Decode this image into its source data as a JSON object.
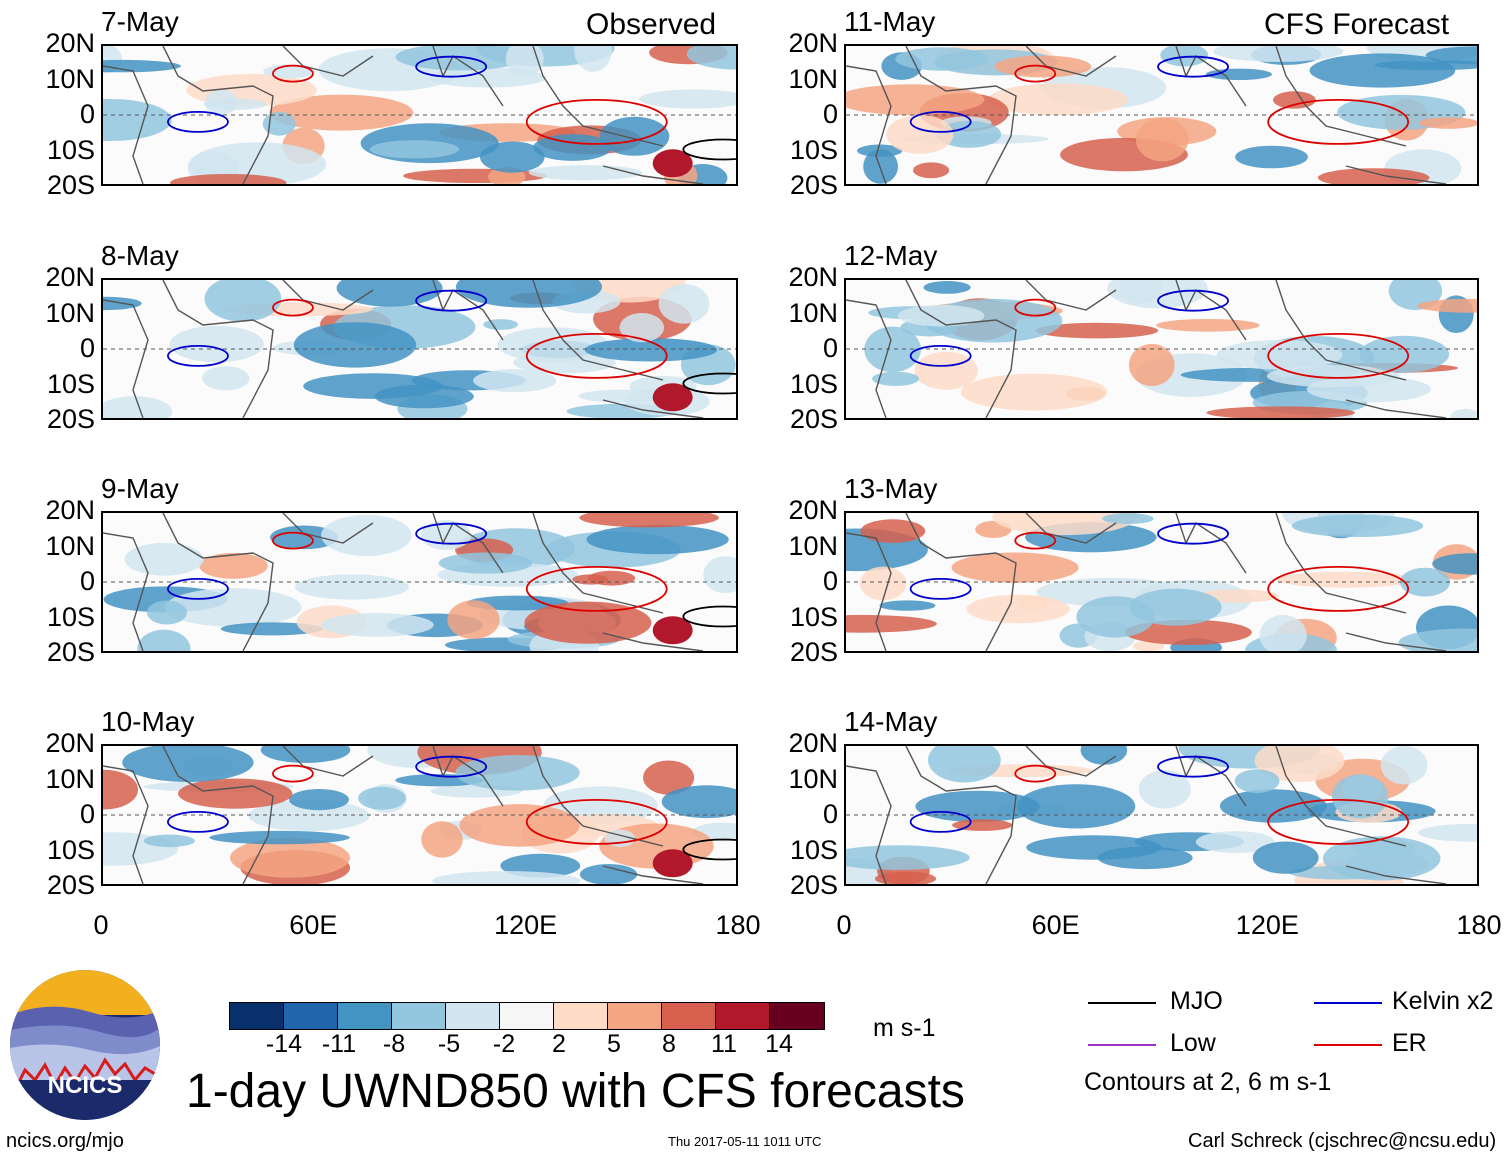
{
  "chart_data": {
    "type": "heatmap",
    "title": "1-day UWND850 with CFS forecasts",
    "variable": "850 hPa zonal wind anomaly",
    "units": "m s-1",
    "columns": [
      {
        "header": "Observed",
        "dates": [
          "7-May",
          "8-May",
          "9-May",
          "10-May"
        ]
      },
      {
        "header": "CFS Forecast",
        "dates": [
          "11-May",
          "12-May",
          "13-May",
          "14-May"
        ]
      }
    ],
    "y_ticks": [
      "20N",
      "10N",
      "0",
      "10S",
      "20S"
    ],
    "x_ticks": [
      "0",
      "60E",
      "120E",
      "180"
    ],
    "xlim": [
      0,
      180
    ],
    "ylim": [
      -20,
      20
    ],
    "colorbar": {
      "levels": [
        "-14",
        "-11",
        "-8",
        "-5",
        "-2",
        "2",
        "5",
        "8",
        "11",
        "14"
      ],
      "colors": [
        "#08306b",
        "#2166ac",
        "#4393c3",
        "#92c5de",
        "#d1e5f0",
        "#f7f7f7",
        "#fddbc7",
        "#f4a582",
        "#d6604d",
        "#b2182b",
        "#67001f"
      ]
    },
    "legend": [
      {
        "label": "MJO",
        "color": "#000000"
      },
      {
        "label": "Kelvin x2",
        "color": "#0000cc"
      },
      {
        "label": "Low",
        "color": "#9933cc"
      },
      {
        "label": "ER",
        "color": "#dd0000"
      }
    ],
    "contour_note": "Contours at 2, 6 m s-1"
  },
  "footer": {
    "left": "ncics.org/mjo",
    "center": "Thu 2017-05-11 1011 UTC",
    "right": "Carl Schreck (cjschrec@ncsu.edu)"
  },
  "logo": {
    "text": "NCICS"
  }
}
